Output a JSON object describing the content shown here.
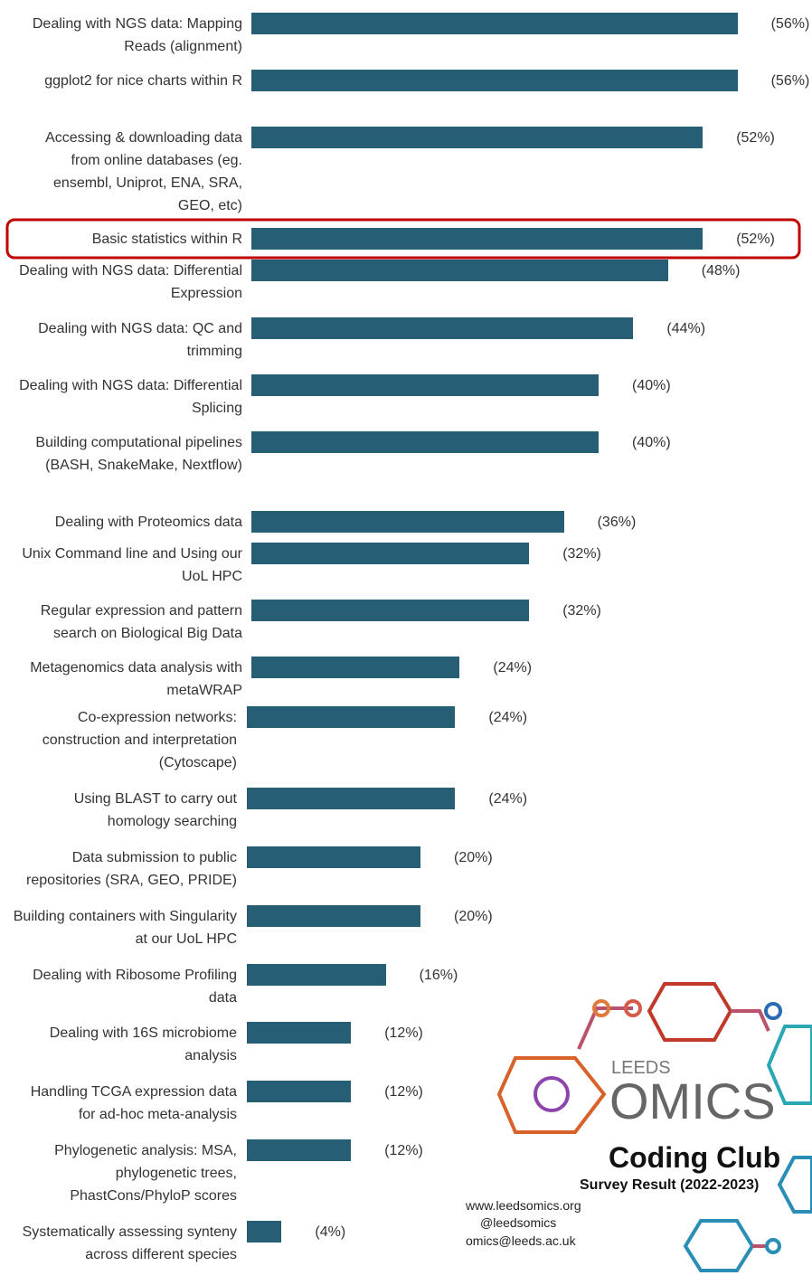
{
  "chart_data": {
    "type": "bar",
    "orientation": "horizontal",
    "color": "#255e75",
    "categories": [
      "Dealing with NGS data: Mapping Reads (alignment)",
      "ggplot2 for nice charts within R",
      "Accessing & downloading data from online databases (eg. ensembl, Uniprot, ENA, SRA, GEO, etc)",
      "Basic statistics within R",
      "Dealing with NGS data: Differential Expression",
      "Dealing with NGS data: QC and trimming",
      "Dealing with NGS data: Differential Splicing",
      "Building computational pipelines (BASH, SnakeMake, Nextflow)",
      "Dealing with Proteomics data",
      "Unix Command line and Using our UoL HPC",
      "Regular expression and pattern search on Biological Big Data",
      "Metagenomics data analysis with metaWRAP",
      "Co-expression networks: construction and interpretation (Cytoscape)",
      "Using BLAST to carry out homology searching",
      "Data submission to public repositories (SRA, GEO, PRIDE)",
      "Building containers with Singularity at our UoL HPC",
      "Dealing with Ribosome Profiling data",
      "Dealing with 16S microbiome analysis",
      "Handling TCGA expression data for ad-hoc meta-analysis",
      "Phylogenetic analysis: MSA, phylogenetic trees, PhastCons/PhyloP scores",
      "Systematically assessing synteny across different species"
    ],
    "values": [
      56,
      56,
      52,
      52,
      48,
      44,
      40,
      40,
      36,
      32,
      32,
      24,
      24,
      24,
      20,
      20,
      16,
      12,
      12,
      12,
      4
    ],
    "value_labels": [
      "(56%)",
      "(56%)",
      "(52%)",
      "(52%)",
      "(48%)",
      "(44%)",
      "(40%)",
      "(40%)",
      "(36%)",
      "(32%)",
      "(32%)",
      "(24%)",
      "(24%)",
      "(24%)",
      "(20%)",
      "(20%)",
      "(16%)",
      "(12%)",
      "(12%)",
      "(12%)",
      "(4%)"
    ]
  },
  "logo": {
    "leeds": "LEEDS",
    "omics": "OMICS",
    "club": "Coding Club",
    "subtitle": "Survey Result (2022-2023)",
    "website": "www.leedsomics.org",
    "twitter": "@leedsomics",
    "email": "omics@leeds.ac.uk"
  }
}
